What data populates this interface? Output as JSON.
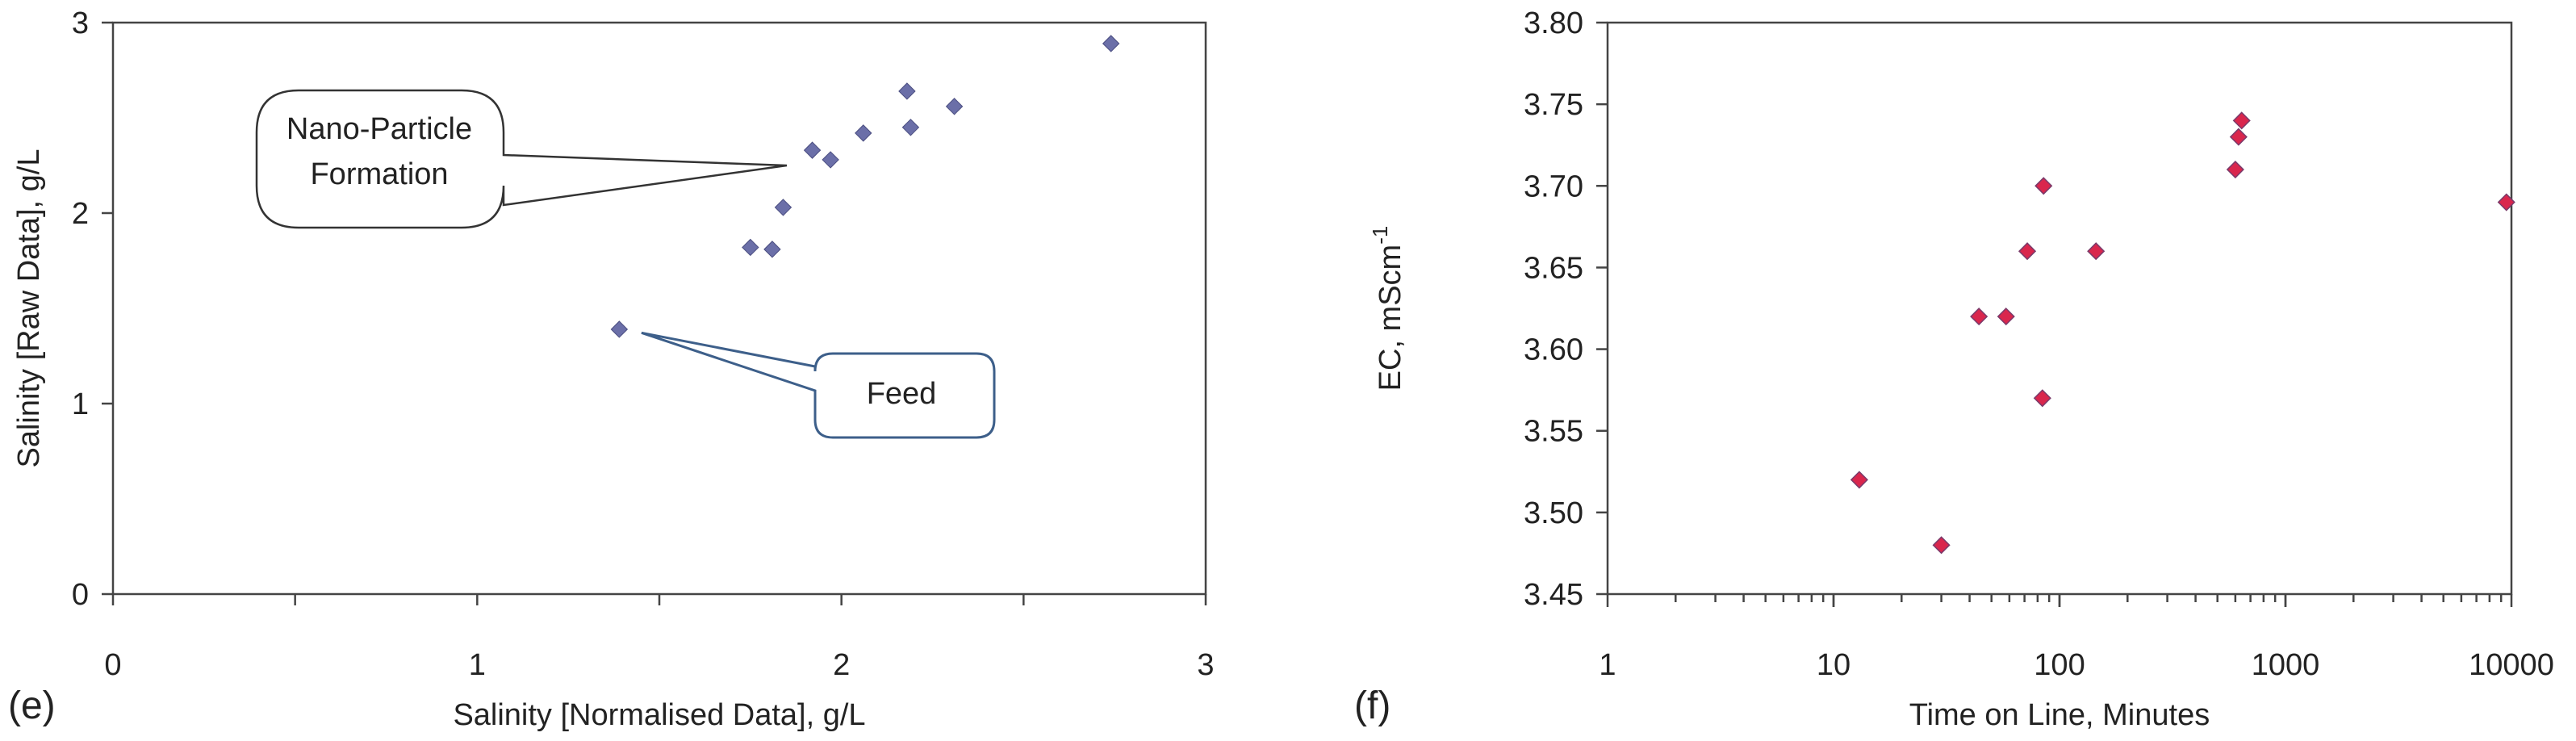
{
  "chart_data": [
    {
      "type": "scatter",
      "panel_label": "(e)",
      "xlabel": "Salinity [Normalised Data], g/L",
      "ylabel": "Salinity [Raw Data],  g/L",
      "xlim": [
        0,
        3
      ],
      "ylim": [
        0,
        3
      ],
      "x_ticks": [
        0,
        1,
        2,
        3
      ],
      "x_tick_labels": [
        "0",
        "1",
        "2",
        "3"
      ],
      "y_ticks": [
        0,
        1,
        2,
        3
      ],
      "y_tick_labels": [
        "0",
        "1",
        "2",
        "3"
      ],
      "grid": false,
      "marker_color": "#6b6fa8",
      "series": [
        {
          "x": [
            1.39,
            1.75,
            1.81,
            1.84,
            1.92,
            1.97,
            2.06,
            2.18,
            2.19,
            2.31,
            2.74
          ],
          "y": [
            1.39,
            1.82,
            1.81,
            2.03,
            2.33,
            2.28,
            2.42,
            2.64,
            2.45,
            2.56,
            2.89
          ]
        }
      ],
      "annotations": [
        {
          "lines": [
            "Nano-Particle",
            "Formation"
          ],
          "points_to": [
            1.85,
            2.25
          ]
        },
        {
          "lines": [
            "Feed"
          ],
          "points_to": [
            1.42,
            1.38
          ]
        }
      ]
    },
    {
      "type": "scatter",
      "panel_label": "(f)",
      "xlabel": "Time on Line, Minutes",
      "ylabel": "EC, mScm",
      "ylabel_superscript": "-1",
      "xscale": "log",
      "xlim": [
        1,
        10000
      ],
      "ylim": [
        3.45,
        3.8
      ],
      "x_ticks": [
        1,
        10,
        100,
        1000,
        10000
      ],
      "x_tick_labels": [
        "1",
        "10",
        "100",
        "1000",
        "10000"
      ],
      "y_ticks": [
        3.45,
        3.5,
        3.55,
        3.6,
        3.65,
        3.7,
        3.75,
        3.8
      ],
      "y_tick_labels": [
        "3.45",
        "3.50",
        "3.55",
        "3.60",
        "3.65",
        "3.70",
        "3.75",
        "3.80"
      ],
      "grid": false,
      "marker_color": "#d9264d",
      "series": [
        {
          "x": [
            13,
            30,
            44,
            58,
            72,
            84,
            85,
            145,
            600,
            620,
            640,
            9500
          ],
          "y": [
            3.52,
            3.48,
            3.62,
            3.62,
            3.66,
            3.57,
            3.7,
            3.66,
            3.71,
            3.73,
            3.74,
            3.69
          ]
        }
      ]
    }
  ]
}
